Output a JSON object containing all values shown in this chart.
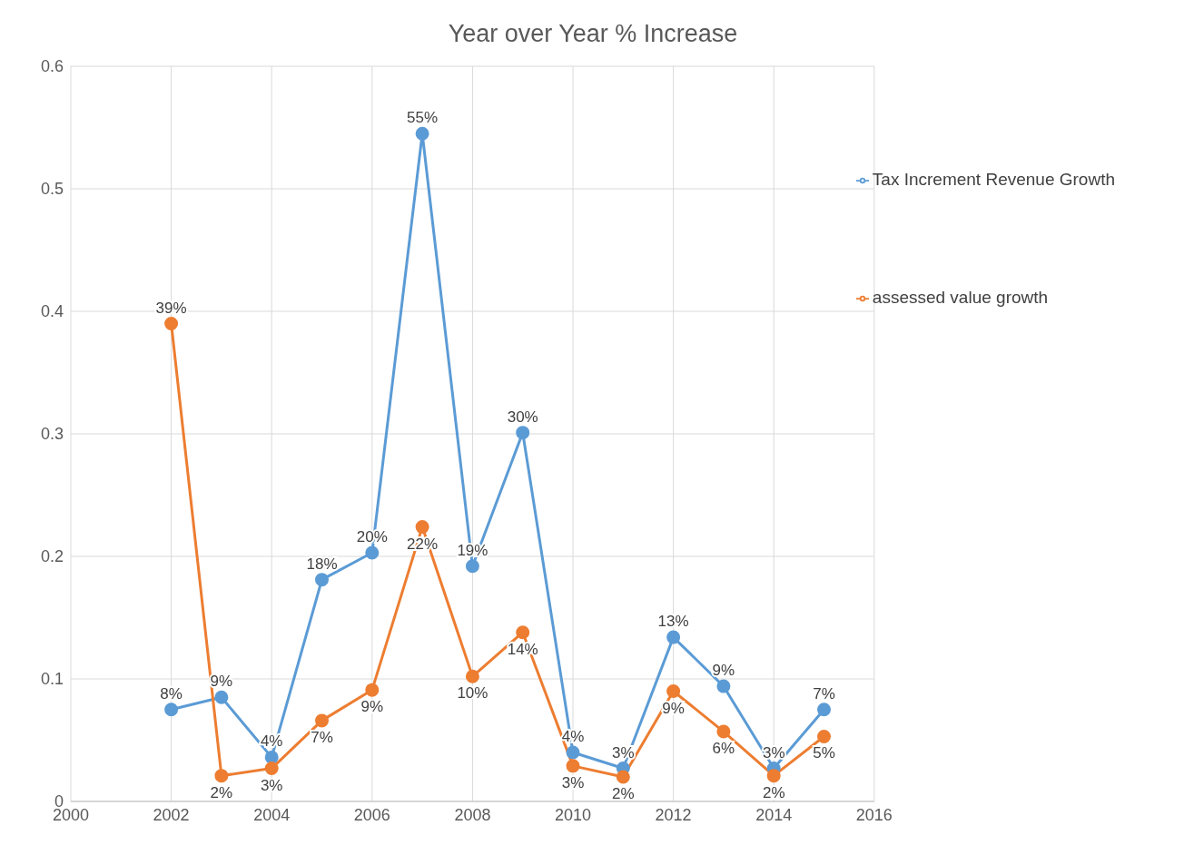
{
  "chart_data": {
    "type": "line",
    "title": "Year over Year % Increase",
    "x": [
      2002,
      2003,
      2004,
      2005,
      2006,
      2007,
      2008,
      2009,
      2010,
      2011,
      2012,
      2013,
      2014,
      2015
    ],
    "series": [
      {
        "name": "Tax Increment Revenue Growth",
        "color": "#5b9bd5",
        "values": [
          0.075,
          0.085,
          0.036,
          0.181,
          0.203,
          0.545,
          0.192,
          0.301,
          0.04,
          0.027,
          0.134,
          0.094,
          0.027,
          0.075
        ],
        "value_labels": [
          "8%",
          "9%",
          "4%",
          "18%",
          "20%",
          "55%",
          "19%",
          "30%",
          "4%",
          "3%",
          "13%",
          "9%",
          "3%",
          "7%"
        ]
      },
      {
        "name": "assessed value growth",
        "color": "#ed7d31",
        "values": [
          0.39,
          0.021,
          0.027,
          0.066,
          0.091,
          0.224,
          0.102,
          0.138,
          0.029,
          0.02,
          0.09,
          0.057,
          0.021,
          0.053
        ],
        "value_labels": [
          "39%",
          "2%",
          "3%",
          "7%",
          "9%",
          "22%",
          "10%",
          "14%",
          "3%",
          "2%",
          "9%",
          "6%",
          "2%",
          "5%"
        ]
      }
    ],
    "xlim": [
      2000,
      2016
    ],
    "xticks": [
      2000,
      2002,
      2004,
      2006,
      2008,
      2010,
      2012,
      2014,
      2016
    ],
    "ylim": [
      0,
      0.6
    ],
    "yticks": [
      0,
      0.1,
      0.2,
      0.3,
      0.4,
      0.5,
      0.6
    ],
    "grid": true,
    "legend": "top right",
    "marker": "circle",
    "line_style": "solid"
  }
}
